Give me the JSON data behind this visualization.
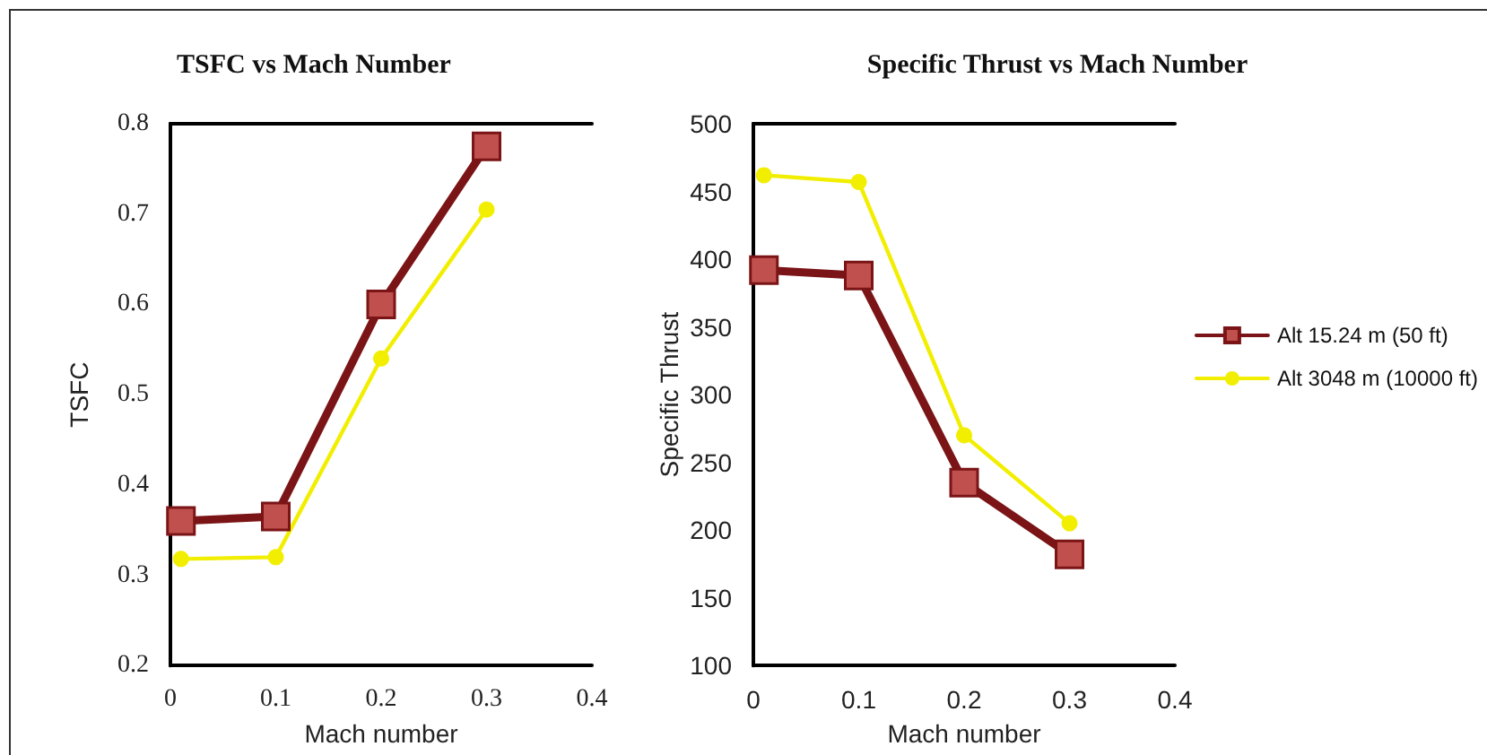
{
  "chart_data": [
    {
      "type": "line",
      "title": "TSFC vs Mach Number",
      "xlabel": "Mach number",
      "ylabel": "TSFC",
      "x": [
        0.01,
        0.1,
        0.2,
        0.3
      ],
      "xlim": [
        0,
        0.4
      ],
      "xticks": [
        0,
        0.1,
        0.2,
        0.3,
        0.4
      ],
      "ylim": [
        0.2,
        0.8
      ],
      "yticks": [
        0.2,
        0.3,
        0.4,
        0.5,
        0.6,
        0.7,
        0.8
      ],
      "grid": false,
      "legend": false,
      "series": [
        {
          "color": "#7b1416",
          "marker": "square",
          "values": [
            0.36,
            0.365,
            0.6,
            0.775
          ]
        },
        {
          "color": "#f2ee00",
          "marker": "circle",
          "values": [
            0.318,
            0.32,
            0.54,
            0.705
          ]
        }
      ]
    },
    {
      "type": "line",
      "title": "Specific Thrust vs Mach Number",
      "xlabel": "Mach number",
      "ylabel": "Specific Thrust",
      "x": [
        0.01,
        0.1,
        0.2,
        0.3
      ],
      "xlim": [
        0,
        0.4
      ],
      "xticks": [
        0,
        0.1,
        0.2,
        0.3,
        0.4
      ],
      "ylim": [
        100,
        500
      ],
      "yticks": [
        100,
        150,
        200,
        250,
        300,
        350,
        400,
        450,
        500
      ],
      "grid": false,
      "legend": "right",
      "series": [
        {
          "name": "Alt 15.24 m (50 ft)",
          "color": "#7b1416",
          "marker": "square",
          "values": [
            392,
            388,
            235,
            182
          ]
        },
        {
          "name": "Alt 3048 m (10000 ft)",
          "color": "#f2ee00",
          "marker": "circle",
          "values": [
            462,
            457,
            270,
            205
          ]
        }
      ]
    }
  ]
}
